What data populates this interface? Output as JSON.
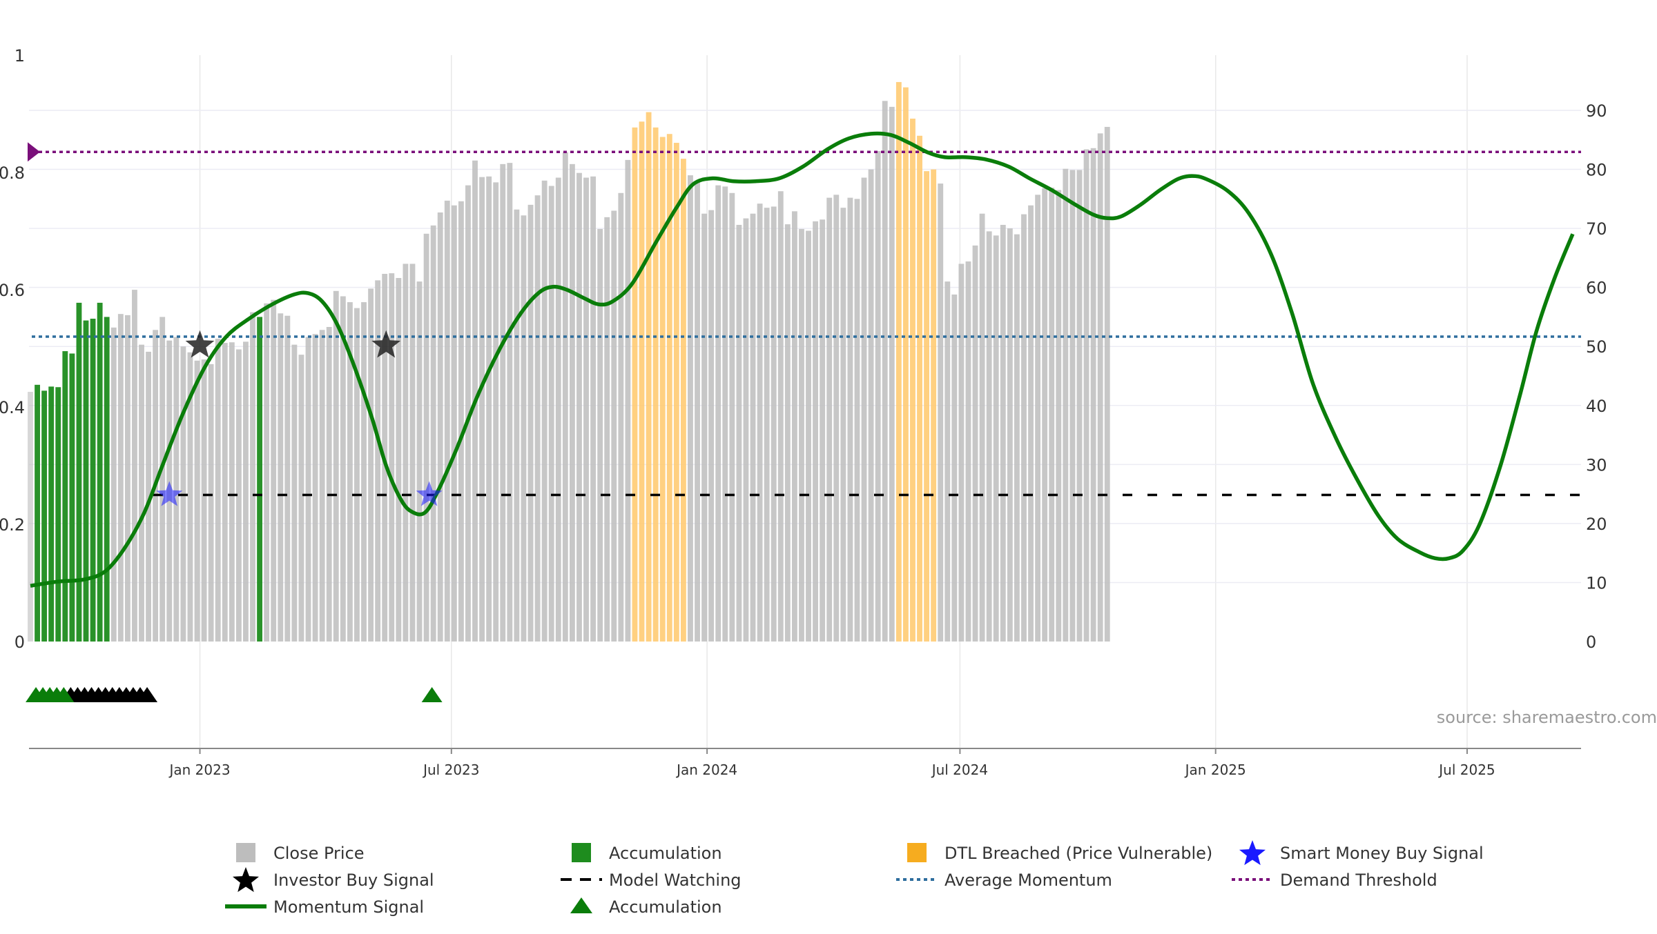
{
  "chart_data": {
    "type": "bar",
    "source": "source: sharemaestro.com",
    "x_ticks": [
      {
        "date": "2023-01-01",
        "label": "Jan 2023"
      },
      {
        "date": "2023-07-01",
        "label": "Jul 2023"
      },
      {
        "date": "2024-01-01",
        "label": "Jan 2024"
      },
      {
        "date": "2024-07-01",
        "label": "Jul 2024"
      },
      {
        "date": "2025-01-01",
        "label": "Jan 2025"
      },
      {
        "date": "2025-07-01",
        "label": "Jul 2025"
      }
    ],
    "xlim": [
      "2022-08-31",
      "2025-09-21"
    ],
    "y_left": {
      "ticks": [
        "0",
        "0.2",
        "0.4",
        "0.6",
        "0.8",
        "1"
      ],
      "range": [
        0,
        1
      ]
    },
    "y_right": {
      "ticks": [
        "0",
        "10",
        "20",
        "30",
        "40",
        "50",
        "60",
        "70",
        "80",
        "90"
      ],
      "range": [
        0,
        90
      ]
    },
    "colors": {
      "close": "#bdbdbd",
      "accumulation": "#1e8c1e",
      "dtl": "#ffcb73",
      "momentum": "#0a7d0a",
      "average": "#2e6e9e",
      "demand": "#7a0f7a",
      "watching": "#000000",
      "smart_money": "#1a1aff"
    },
    "legend": [
      {
        "label": "Close Price",
        "marker": "square",
        "color": "#bdbdbd"
      },
      {
        "label": "Accumulation",
        "marker": "square",
        "color": "#1e8c1e"
      },
      {
        "label": "DTL Breached (Price Vulnerable)",
        "marker": "square",
        "color": "#f6ac1f"
      },
      {
        "label": "Smart Money Buy Signal",
        "marker": "star",
        "color": "#1a1aff"
      },
      {
        "label": "Investor Buy Signal",
        "marker": "star",
        "color": "#000000"
      },
      {
        "label": "Model Watching",
        "marker": "dash",
        "color": "#000000"
      },
      {
        "label": "Average Momentum",
        "marker": "dot",
        "color": "#2e6e9e"
      },
      {
        "label": "Demand Threshold",
        "marker": "dot",
        "color": "#7a0f7a"
      },
      {
        "label": "Momentum Signal",
        "marker": "line",
        "color": "#0a7d0a"
      },
      {
        "label": "Accumulation",
        "marker": "triangle",
        "color": "#0a7d0a"
      }
    ],
    "bars": {
      "start_date": "2022-09-01",
      "step_days": 5,
      "values": [
        42.3,
        43.5,
        42.5,
        43.2,
        43.1,
        49.2,
        48.8,
        57.4,
        54.4,
        54.7,
        57.4,
        55.0,
        53.2,
        55.5,
        55.3,
        59.6,
        50.3,
        49.1,
        52.8,
        55.0,
        51.0,
        51.6,
        50.0,
        49.0,
        47.6,
        47.8,
        47.0,
        51.3,
        50.6,
        50.7,
        49.5,
        50.8,
        55.8,
        55.0,
        57.3,
        57.9,
        55.6,
        55.2,
        50.3,
        48.6,
        51.6,
        52.1,
        52.8,
        53.3,
        59.4,
        58.5,
        57.5,
        56.5,
        57.5,
        59.8,
        61.2,
        62.3,
        62.4,
        61.6,
        64.0,
        64.0,
        61.0,
        69.1,
        70.5,
        72.7,
        74.7,
        73.9,
        74.6,
        77.3,
        81.5,
        78.7,
        78.8,
        77.8,
        80.9,
        81.1,
        73.2,
        72.2,
        74.0,
        75.6,
        78.1,
        77.2,
        78.6,
        82.9,
        80.9,
        79.4,
        78.6,
        78.8,
        69.9,
        71.9,
        73.0,
        76.0,
        81.6,
        87.1,
        88.1,
        89.7,
        87.1,
        85.5,
        86.0,
        84.5,
        81.8,
        79.0,
        78.0,
        72.5,
        73.1,
        77.3,
        77.1,
        76.0,
        70.6,
        71.7,
        72.5,
        74.2,
        73.5,
        73.7,
        76.3,
        70.7,
        72.9,
        69.9,
        69.6,
        71.2,
        71.5,
        75.2,
        75.7,
        73.5,
        75.2,
        75.0,
        78.6,
        80.0,
        83.1,
        91.6,
        90.6,
        94.8,
        93.9,
        88.6,
        85.7,
        79.7,
        80.0,
        77.6,
        61.0,
        58.8,
        64.0,
        64.4,
        67.1,
        72.5,
        69.5,
        68.8,
        70.6,
        70.0,
        69.0,
        72.4,
        73.9,
        75.7,
        76.8,
        76.9,
        76.5,
        80.1,
        79.9,
        79.9,
        83.4,
        83.6,
        86.1,
        87.2
      ],
      "accumulation_indices": [
        1,
        2,
        3,
        4,
        5,
        6,
        7,
        8,
        9,
        10,
        11,
        33
      ],
      "dtl_indices": [
        87,
        88,
        89,
        90,
        91,
        92,
        93,
        94,
        125,
        126,
        127,
        128,
        129,
        130
      ],
      "clear_indices": [
        0
      ]
    },
    "momentum": {
      "points": [
        [
          "2022-09-01",
          0.095
        ],
        [
          "2022-09-20",
          0.102
        ],
        [
          "2022-10-10",
          0.106
        ],
        [
          "2022-10-25",
          0.12
        ],
        [
          "2022-11-08",
          0.16
        ],
        [
          "2022-11-22",
          0.22
        ],
        [
          "2022-12-05",
          0.3
        ],
        [
          "2022-12-20",
          0.39
        ],
        [
          "2023-01-05",
          0.47
        ],
        [
          "2023-01-20",
          0.52
        ],
        [
          "2023-02-05",
          0.55
        ],
        [
          "2023-02-22",
          0.575
        ],
        [
          "2023-03-10",
          0.592
        ],
        [
          "2023-03-20",
          0.594
        ],
        [
          "2023-03-30",
          0.58
        ],
        [
          "2023-04-10",
          0.54
        ],
        [
          "2023-04-22",
          0.47
        ],
        [
          "2023-05-05",
          0.38
        ],
        [
          "2023-05-15",
          0.3
        ],
        [
          "2023-05-25",
          0.245
        ],
        [
          "2023-06-02",
          0.222
        ],
        [
          "2023-06-12",
          0.22
        ],
        [
          "2023-06-22",
          0.26
        ],
        [
          "2023-07-05",
          0.33
        ],
        [
          "2023-07-20",
          0.42
        ],
        [
          "2023-08-05",
          0.5
        ],
        [
          "2023-08-20",
          0.56
        ],
        [
          "2023-09-02",
          0.595
        ],
        [
          "2023-09-12",
          0.605
        ],
        [
          "2023-09-22",
          0.6
        ],
        [
          "2023-10-05",
          0.585
        ],
        [
          "2023-10-15",
          0.575
        ],
        [
          "2023-10-25",
          0.58
        ],
        [
          "2023-11-08",
          0.61
        ],
        [
          "2023-11-25",
          0.68
        ],
        [
          "2023-12-10",
          0.74
        ],
        [
          "2023-12-22",
          0.78
        ],
        [
          "2024-01-05",
          0.79
        ],
        [
          "2024-01-20",
          0.785
        ],
        [
          "2024-02-05",
          0.785
        ],
        [
          "2024-02-22",
          0.79
        ],
        [
          "2024-03-10",
          0.81
        ],
        [
          "2024-03-28",
          0.84
        ],
        [
          "2024-04-12",
          0.858
        ],
        [
          "2024-04-28",
          0.866
        ],
        [
          "2024-05-12",
          0.864
        ],
        [
          "2024-05-25",
          0.851
        ],
        [
          "2024-06-08",
          0.834
        ],
        [
          "2024-06-20",
          0.826
        ],
        [
          "2024-07-05",
          0.826
        ],
        [
          "2024-07-20",
          0.822
        ],
        [
          "2024-08-05",
          0.81
        ],
        [
          "2024-08-20",
          0.79
        ],
        [
          "2024-09-05",
          0.77
        ],
        [
          "2024-09-20",
          0.748
        ],
        [
          "2024-10-05",
          0.728
        ],
        [
          "2024-10-15",
          0.722
        ],
        [
          "2024-10-25",
          0.725
        ],
        [
          "2024-11-08",
          0.745
        ],
        [
          "2024-11-22",
          0.77
        ],
        [
          "2024-12-05",
          0.789
        ],
        [
          "2024-12-15",
          0.794
        ],
        [
          "2024-12-25",
          0.789
        ],
        [
          "2025-01-10",
          0.768
        ],
        [
          "2025-01-25",
          0.73
        ],
        [
          "2025-02-10",
          0.66
        ],
        [
          "2025-02-25",
          0.56
        ],
        [
          "2025-03-12",
          0.44
        ],
        [
          "2025-03-28",
          0.35
        ],
        [
          "2025-04-12",
          0.28
        ],
        [
          "2025-04-28",
          0.215
        ],
        [
          "2025-05-12",
          0.175
        ],
        [
          "2025-05-28",
          0.152
        ],
        [
          "2025-06-08",
          0.142
        ],
        [
          "2025-06-18",
          0.142
        ],
        [
          "2025-06-28",
          0.155
        ],
        [
          "2025-07-10",
          0.2
        ],
        [
          "2025-07-25",
          0.3
        ],
        [
          "2025-08-08",
          0.42
        ],
        [
          "2025-08-20",
          0.53
        ],
        [
          "2025-09-02",
          0.62
        ],
        [
          "2025-09-15",
          0.695
        ]
      ],
      "x_scale": {
        "from": [
          "2022-09-01",
          "2025-09-20"
        ],
        "to": [
          "2022-09-01",
          "2025-09-20"
        ]
      }
    },
    "average_momentum": 0.52,
    "demand_threshold": 0.835,
    "model_watching": 0.25,
    "investor_buy_signals": [
      [
        "2023-01-01",
        0.505
      ],
      [
        "2023-05-15",
        0.505
      ]
    ],
    "smart_money_buy_signals": [
      [
        "2022-12-10",
        0.25
      ],
      [
        "2023-06-15",
        0.25
      ]
    ],
    "accumulation_triangles": {
      "green": [
        "2022-09-05",
        "2022-09-10",
        "2022-09-15",
        "2022-09-20",
        "2022-09-25",
        "2023-06-17"
      ],
      "black": [
        "2022-09-30",
        "2022-10-05",
        "2022-10-10",
        "2022-10-15",
        "2022-10-20",
        "2022-10-25",
        "2022-10-30",
        "2022-11-04",
        "2022-11-09",
        "2022-11-14",
        "2022-11-19",
        "2022-11-24"
      ]
    }
  }
}
